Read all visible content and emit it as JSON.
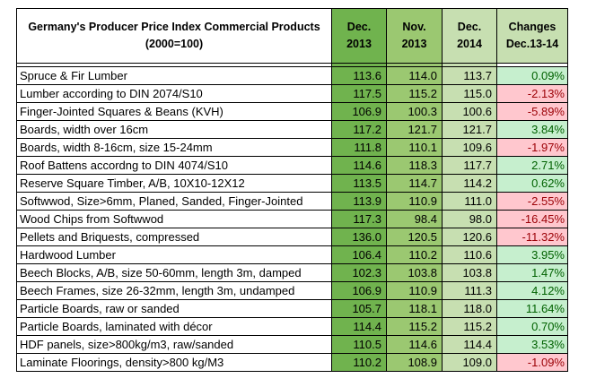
{
  "chart_data": {
    "type": "table",
    "title_line1": "Germany's Producer Price Index Commercial Products",
    "title_line2": "(2000=100)",
    "columns": [
      {
        "line1": "Dec.",
        "line2": "2013"
      },
      {
        "line1": "Nov.",
        "line2": "2013"
      },
      {
        "line1": "Dec.",
        "line2": "2014"
      },
      {
        "line1": "Changes",
        "line2": "Dec.13-14"
      }
    ],
    "rows": [
      {
        "product": "Spruce & Fir Lumber",
        "dec2013": "113.6",
        "nov2013": "114.0",
        "dec2014": "113.7",
        "change": "0.09%"
      },
      {
        "product": "Lumber according to DIN 2074/S10",
        "dec2013": "117.5",
        "nov2013": "115.2",
        "dec2014": "115.0",
        "change": "-2.13%"
      },
      {
        "product": "Finger-Jointed Squares & Beans (KVH)",
        "dec2013": "106.9",
        "nov2013": "100.3",
        "dec2014": "100.6",
        "change": "-5.89%"
      },
      {
        "product": "Boards, width over 16cm",
        "dec2013": "117.2",
        "nov2013": "121.7",
        "dec2014": "121.7",
        "change": "3.84%"
      },
      {
        "product": "Boards, width 8-16cm, size 15-24mm",
        "dec2013": "111.8",
        "nov2013": "110.1",
        "dec2014": "109.6",
        "change": "-1.97%"
      },
      {
        "product": "Roof Battens accordng to DIN 4074/S10",
        "dec2013": "114.6",
        "nov2013": "118.3",
        "dec2014": "117.7",
        "change": "2.71%"
      },
      {
        "product": "Reserve Square Timber, A/B, 10X10-12X12",
        "dec2013": "113.5",
        "nov2013": "114.7",
        "dec2014": "114.2",
        "change": "0.62%"
      },
      {
        "product": "Softwwod, Size>6mm, Planed, Sanded, Finger-Jointed",
        "dec2013": "113.9",
        "nov2013": "110.9",
        "dec2014": "111.0",
        "change": "-2.55%"
      },
      {
        "product": "Wood Chips from Softwwod",
        "dec2013": "117.3",
        "nov2013": "98.4",
        "dec2014": "98.0",
        "change": "-16.45%"
      },
      {
        "product": "Pellets and Briquests, compressed",
        "dec2013": "136.0",
        "nov2013": "120.5",
        "dec2014": "120.6",
        "change": "-11.32%"
      },
      {
        "product": "Hardwood Lumber",
        "dec2013": "106.4",
        "nov2013": "110.2",
        "dec2014": "110.6",
        "change": "3.95%"
      },
      {
        "product": "Beech Blocks, A/B, size 50-60mm, length 3m, damped",
        "dec2013": "102.3",
        "nov2013": "103.8",
        "dec2014": "103.8",
        "change": "1.47%"
      },
      {
        "product": "Beech Frames, size 26-32mm, length 3m, undamped",
        "dec2013": "106.9",
        "nov2013": "110.9",
        "dec2014": "111.3",
        "change": "4.12%"
      },
      {
        "product": "Particle Boards, raw or sanded",
        "dec2013": "105.7",
        "nov2013": "118.1",
        "dec2014": "118.0",
        "change": "11.64%"
      },
      {
        "product": "Particle Boards, laminated with décor",
        "dec2013": "114.4",
        "nov2013": "115.2",
        "dec2014": "115.2",
        "change": "0.70%"
      },
      {
        "product": "HDF panels, size>800kg/m3, raw/sanded",
        "dec2013": "110.5",
        "nov2013": "114.6",
        "dec2014": "114.4",
        "change": "3.53%"
      },
      {
        "product": "Laminate Floorings, density>800 kg/M3",
        "dec2013": "110.2",
        "nov2013": "108.9",
        "dec2014": "109.0",
        "change": "-1.09%"
      }
    ],
    "colors": {
      "dec2013_fill": "#70b34e",
      "nov2013_fill": "#9bc871",
      "dec2014_fill": "#c7dfb1",
      "positive_fill": "#c6efce",
      "positive_text": "#006100",
      "negative_fill": "#ffc7ce",
      "negative_text": "#9c0006"
    }
  }
}
